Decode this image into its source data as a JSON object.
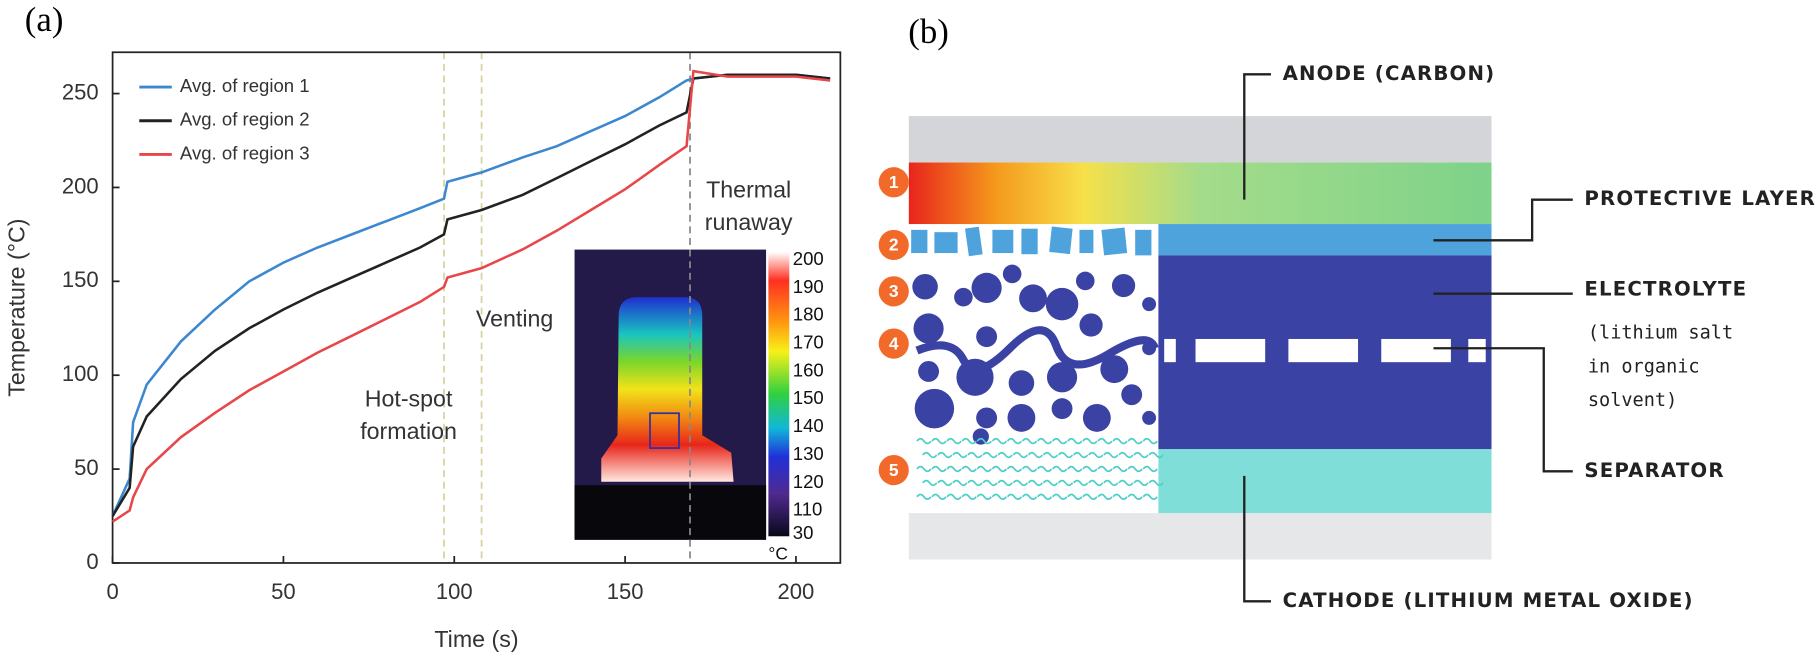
{
  "chart_data": {
    "type": "line",
    "panel_label": "(a)",
    "x_label": "Time (s)",
    "y_label": "Temperature (°C)",
    "x": [
      0,
      5,
      6,
      10,
      20,
      30,
      40,
      50,
      60,
      70,
      80,
      90,
      97,
      98,
      108,
      120,
      130,
      140,
      150,
      160,
      168,
      170,
      180,
      190,
      200,
      210
    ],
    "series": [
      {
        "name": "Avg. of region 1",
        "color": "#3d87cf",
        "values": [
          25,
          45,
          75,
          95,
          118,
          135,
          150,
          160,
          168,
          175,
          182,
          189,
          194,
          203,
          208,
          216,
          222,
          230,
          238,
          248,
          257,
          258,
          260,
          260,
          260,
          258
        ]
      },
      {
        "name": "Avg. of region 2",
        "color": "#222222",
        "values": [
          25,
          40,
          62,
          78,
          98,
          113,
          125,
          135,
          144,
          152,
          160,
          168,
          175,
          183,
          188,
          196,
          205,
          214,
          223,
          233,
          240,
          258,
          260,
          260,
          260,
          258
        ]
      },
      {
        "name": "Avg. of region 3",
        "color": "#e8474a",
        "values": [
          22,
          28,
          35,
          50,
          67,
          80,
          92,
          102,
          112,
          121,
          130,
          139,
          147,
          152,
          157,
          167,
          177,
          188,
          199,
          212,
          222,
          262,
          259,
          259,
          259,
          257
        ]
      }
    ],
    "xlim": [
      0,
      213
    ],
    "xticks": [
      0,
      50,
      100,
      150,
      200
    ],
    "ylim": [
      0,
      272
    ],
    "yticks": [
      0,
      50,
      100,
      150,
      200,
      250
    ],
    "grid": false,
    "legend": "upper left",
    "event_lines": [
      97,
      108,
      169
    ],
    "annotations": [
      "Hot-spot formation",
      "Venting",
      "Thermal runaway"
    ],
    "colorbar_ticks": [
      200,
      190,
      180,
      170,
      160,
      150,
      140,
      130,
      120,
      110,
      30
    ],
    "colorbar_unit": "°C"
  },
  "diagram": {
    "panel_label": "(b)",
    "markers": [
      "1",
      "2",
      "3",
      "4",
      "5"
    ],
    "anode": "ANODE (CARBON)",
    "protective_layer": "PROTECTIVE LAYER",
    "electrolyte": "ELECTROLYTE",
    "electrolyte_note": [
      "(lithium salt",
      "in organic",
      "solvent)"
    ],
    "separator": "SEPARATOR",
    "cathode": "CATHODE (LITHIUM METAL OXIDE)"
  }
}
